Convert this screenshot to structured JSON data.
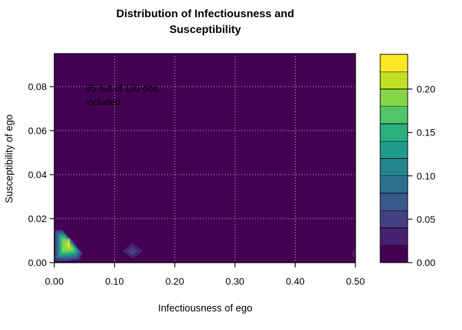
{
  "chart_data": {
    "type": "filled_contour",
    "title": "Distribution of Infectiousness and Susceptibility",
    "display_title": "Distribution of Infectiousness and\nSusceptibility",
    "xlabel": "Infectiousness of ego",
    "ylabel": "Susceptibility of ego",
    "xlim": [
      0,
      0.5
    ],
    "ylim": [
      0,
      0.095
    ],
    "xticks": {
      "values": [
        0,
        0.1,
        0.2,
        0.3,
        0.4,
        0.5
      ],
      "labels": [
        "0.00",
        "0.10",
        "0.20",
        "0.30",
        "0.40",
        "0.50"
      ]
    },
    "yticks": {
      "values": [
        0,
        0.02,
        0.04,
        0.06,
        0.08
      ],
      "labels": [
        "0.00",
        "0.02",
        "0.04",
        "0.06",
        "0.08"
      ]
    },
    "grid": {
      "show": true,
      "style": "dotted",
      "color": "#ffffff",
      "opacity": 0.85
    },
    "field_color": "#440154",
    "palette": [
      "#440154",
      "#482173",
      "#433e85",
      "#38598c",
      "#2d708e",
      "#25858e",
      "#1e9b8a",
      "#2ab07f",
      "#52c569",
      "#86d549",
      "#c2df23",
      "#fde725"
    ],
    "annotation": {
      "text": "95 out of 100 obs.\nincluded",
      "x": 0.053,
      "y": 0.079
    },
    "colorbar": {
      "range": [
        0,
        0.24
      ],
      "step": 0.02,
      "n_segments": 12,
      "tick_values": [
        0,
        0.05,
        0.1,
        0.15,
        0.2
      ],
      "tick_labels": [
        "0.00",
        "0.05",
        "0.10",
        "0.15",
        "0.20"
      ],
      "position": "right"
    },
    "density_features": [
      {
        "name": "primary-peak",
        "peak": [
          0.022,
          0.008
        ],
        "peak_value": 0.24,
        "outline": [
          [
            0.0,
            0.0005
          ],
          [
            0.0,
            0.0148
          ],
          [
            0.012,
            0.0152
          ],
          [
            0.03,
            0.0102
          ],
          [
            0.047,
            0.0042
          ],
          [
            0.042,
            0.0012
          ],
          [
            0.02,
            0.0005
          ]
        ],
        "shrink_factors": [
          1.0,
          0.93,
          0.86,
          0.79,
          0.72,
          0.65,
          0.57,
          0.48,
          0.38,
          0.14
        ],
        "color_start_index": 1,
        "core_outline": [
          [
            0.0232,
            0.0063
          ],
          [
            0.0228,
            0.0108
          ],
          [
            0.0252,
            0.0108
          ],
          [
            0.0251,
            0.0063
          ]
        ],
        "core_color_index": 11
      },
      {
        "name": "secondary-peak",
        "shape": "diamond",
        "center": [
          0.13,
          0.0053
        ],
        "rx": 0.0172,
        "ry": 0.0036,
        "peak_value": 0.06,
        "rings": [
          {
            "scale": 1.0,
            "color_index": 1
          },
          {
            "scale": 0.52,
            "color_index": 2
          }
        ]
      },
      {
        "name": "edge-peak",
        "shape": "diamond",
        "center": [
          0.503,
          0.004
        ],
        "rx": 0.009,
        "ry": 0.0038,
        "peak_value": 0.04,
        "rings": [
          {
            "scale": 1.0,
            "color_index": 1
          },
          {
            "scale": 0.45,
            "color_index": 2
          }
        ]
      }
    ]
  }
}
